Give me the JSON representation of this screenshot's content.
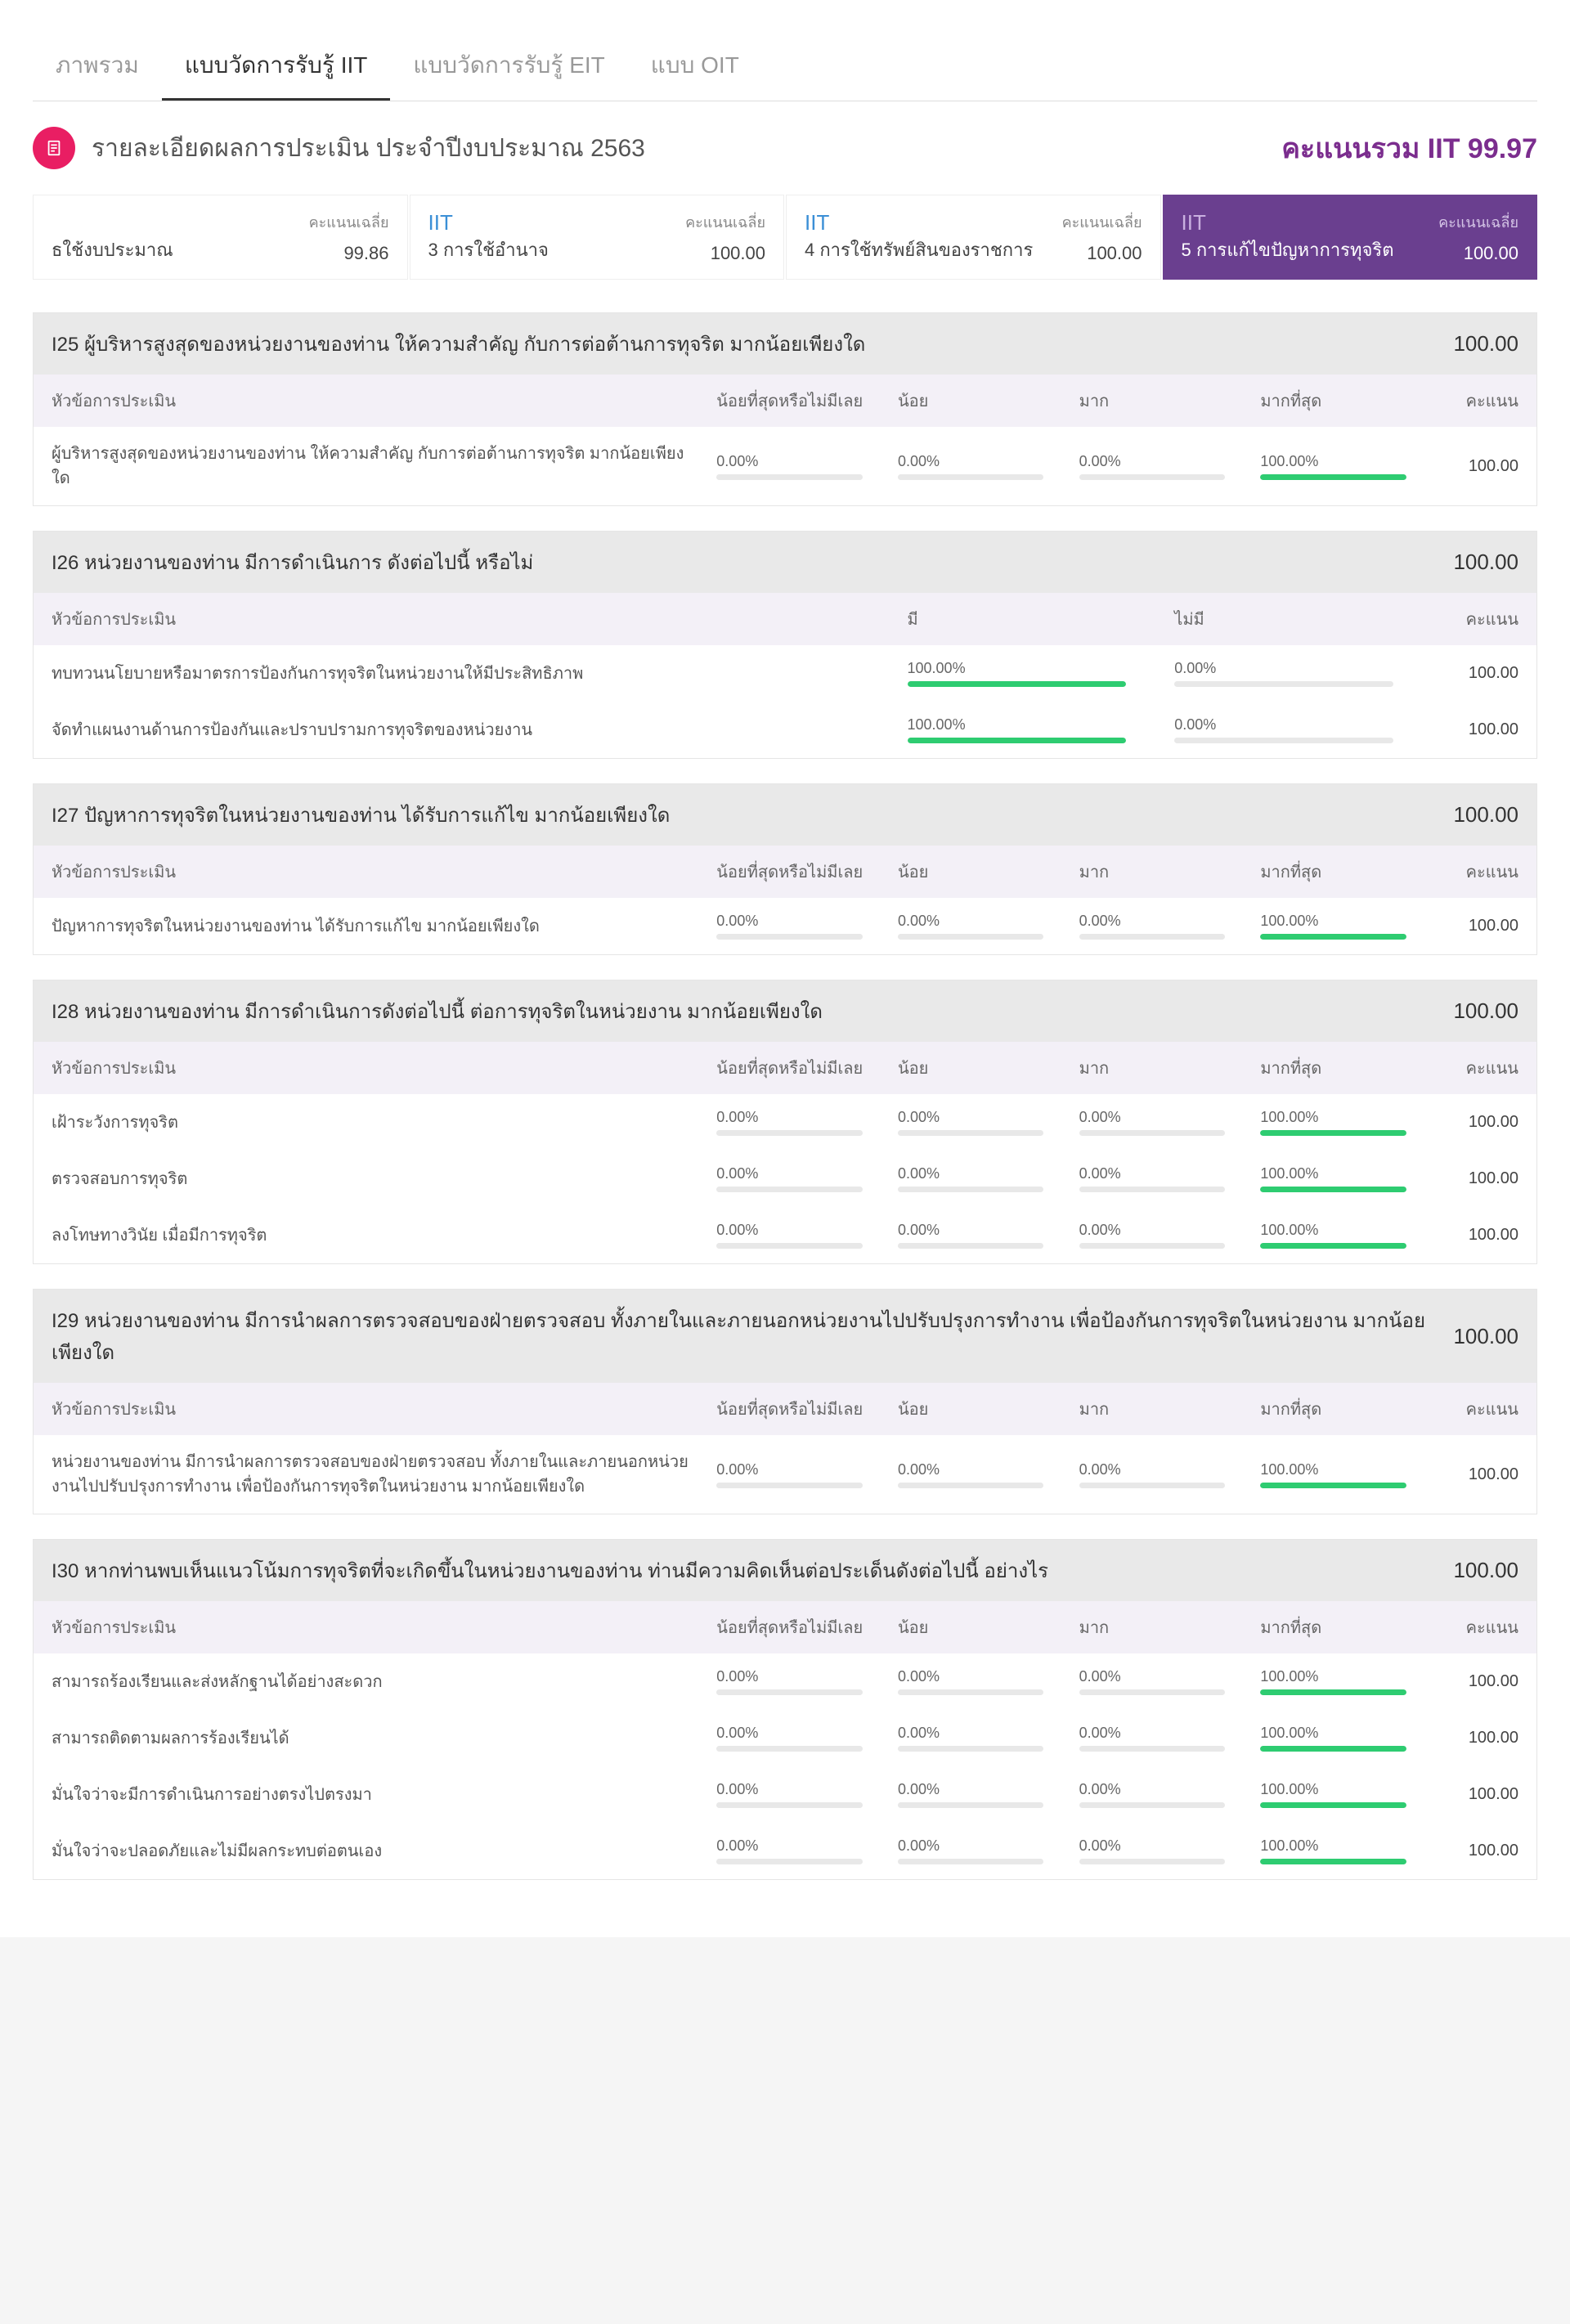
{
  "colors": {
    "accent_purple": "#6a3f8f",
    "accent_pink": "#e91e63",
    "link_blue": "#3b8fd6",
    "bar_fill": "#2ecc71",
    "bar_track": "#e8e8e8",
    "section_header_bg": "#e9e9e9",
    "table_header_bg": "#f3f0f7"
  },
  "tabs": [
    {
      "label": "ภาพรวม",
      "active": false
    },
    {
      "label": "แบบวัดการรับรู้ IIT",
      "active": true
    },
    {
      "label": "แบบวัดการรับรู้ EIT",
      "active": false
    },
    {
      "label": "แบบ OIT",
      "active": false
    }
  ],
  "header": {
    "title": "รายละเอียดผลการประเมิน ประจำปีงบประมาณ 2563",
    "total_label": "คะแนนรวม IIT 99.97",
    "icon": "document-icon"
  },
  "avg_label": "คะแนนเฉลี่ย",
  "cards": [
    {
      "title": "",
      "sub": "ธใช้งบประมาณ",
      "avg": "99.86",
      "active": false,
      "partial": true
    },
    {
      "title": "IIT",
      "sub": "3 การใช้อำนาจ",
      "avg": "100.00",
      "active": false
    },
    {
      "title": "IIT",
      "sub": "4 การใช้ทรัพย์สินของราชการ",
      "avg": "100.00",
      "active": false
    },
    {
      "title": "IIT",
      "sub": "5 การแก้ไขปัญหาการทุจริต",
      "avg": "100.00",
      "active": true
    }
  ],
  "col_labels": {
    "topic": "หัวข้อการประเมิน",
    "least": "น้อยที่สุดหรือไม่มีเลย",
    "low": "น้อย",
    "high": "มาก",
    "most": "มากที่สุด",
    "yes": "มี",
    "no": "ไม่มี",
    "score": "คะแนน"
  },
  "sections": [
    {
      "title": "I25 ผู้บริหารสูงสุดของหน่วยงานของท่าน ให้ความสำคัญ กับการต่อต้านการทุจริต มากน้อยเพียงใด",
      "score": "100.00",
      "cols": "four",
      "rows": [
        {
          "title": "ผู้บริหารสูงสุดของหน่วยงานของท่าน ให้ความสำคัญ กับการต่อต้านการทุจริต มากน้อยเพียงใด",
          "vals": [
            "0.00%",
            "0.00%",
            "0.00%",
            "100.00%"
          ],
          "fills": [
            0,
            0,
            0,
            100
          ],
          "score": "100.00"
        }
      ]
    },
    {
      "title": "I26 หน่วยงานของท่าน มีการดำเนินการ ดังต่อไปนี้ หรือไม่",
      "score": "100.00",
      "cols": "two",
      "rows": [
        {
          "title": "ทบทวนนโยบายหรือมาตรการป้องกันการทุจริตในหน่วยงานให้มีประสิทธิภาพ",
          "vals": [
            "100.00%",
            "0.00%"
          ],
          "fills": [
            100,
            0
          ],
          "score": "100.00"
        },
        {
          "title": "จัดทำแผนงานด้านการป้องกันและปราบปรามการทุจริตของหน่วยงาน",
          "vals": [
            "100.00%",
            "0.00%"
          ],
          "fills": [
            100,
            0
          ],
          "score": "100.00"
        }
      ]
    },
    {
      "title": "I27 ปัญหาการทุจริตในหน่วยงานของท่าน ได้รับการแก้ไข มากน้อยเพียงใด",
      "score": "100.00",
      "cols": "four",
      "rows": [
        {
          "title": "ปัญหาการทุจริตในหน่วยงานของท่าน ได้รับการแก้ไข มากน้อยเพียงใด",
          "vals": [
            "0.00%",
            "0.00%",
            "0.00%",
            "100.00%"
          ],
          "fills": [
            0,
            0,
            0,
            100
          ],
          "score": "100.00"
        }
      ]
    },
    {
      "title": "I28 หน่วยงานของท่าน มีการดำเนินการดังต่อไปนี้ ต่อการทุจริตในหน่วยงาน มากน้อยเพียงใด",
      "score": "100.00",
      "cols": "four",
      "rows": [
        {
          "title": "เฝ้าระวังการทุจริต",
          "vals": [
            "0.00%",
            "0.00%",
            "0.00%",
            "100.00%"
          ],
          "fills": [
            0,
            0,
            0,
            100
          ],
          "score": "100.00"
        },
        {
          "title": "ตรวจสอบการทุจริต",
          "vals": [
            "0.00%",
            "0.00%",
            "0.00%",
            "100.00%"
          ],
          "fills": [
            0,
            0,
            0,
            100
          ],
          "score": "100.00"
        },
        {
          "title": "ลงโทษทางวินัย เมื่อมีการทุจริต",
          "vals": [
            "0.00%",
            "0.00%",
            "0.00%",
            "100.00%"
          ],
          "fills": [
            0,
            0,
            0,
            100
          ],
          "score": "100.00"
        }
      ]
    },
    {
      "title": "I29 หน่วยงานของท่าน มีการนำผลการตรวจสอบของฝ่ายตรวจสอบ ทั้งภายในและภายนอกหน่วยงานไปปรับปรุงการทำงาน เพื่อป้องกันการทุจริตในหน่วยงาน มากน้อยเพียงใด",
      "score": "100.00",
      "cols": "four",
      "rows": [
        {
          "title": "หน่วยงานของท่าน มีการนำผลการตรวจสอบของฝ่ายตรวจสอบ ทั้งภายในและภายนอกหน่วยงานไปปรับปรุงการทำงาน เพื่อป้องกันการทุจริตในหน่วยงาน มากน้อยเพียงใด",
          "vals": [
            "0.00%",
            "0.00%",
            "0.00%",
            "100.00%"
          ],
          "fills": [
            0,
            0,
            0,
            100
          ],
          "score": "100.00"
        }
      ]
    },
    {
      "title": "I30 หากท่านพบเห็นแนวโน้มการทุจริตที่จะเกิดขึ้นในหน่วยงานของท่าน ท่านมีความคิดเห็นต่อประเด็นดังต่อไปนี้ อย่างไร",
      "score": "100.00",
      "cols": "four",
      "rows": [
        {
          "title": "สามารถร้องเรียนและส่งหลักฐานได้อย่างสะดวก",
          "vals": [
            "0.00%",
            "0.00%",
            "0.00%",
            "100.00%"
          ],
          "fills": [
            0,
            0,
            0,
            100
          ],
          "score": "100.00"
        },
        {
          "title": "สามารถติดตามผลการร้องเรียนได้",
          "vals": [
            "0.00%",
            "0.00%",
            "0.00%",
            "100.00%"
          ],
          "fills": [
            0,
            0,
            0,
            100
          ],
          "score": "100.00"
        },
        {
          "title": "มั่นใจว่าจะมีการดำเนินการอย่างตรงไปตรงมา",
          "vals": [
            "0.00%",
            "0.00%",
            "0.00%",
            "100.00%"
          ],
          "fills": [
            0,
            0,
            0,
            100
          ],
          "score": "100.00"
        },
        {
          "title": "มั่นใจว่าจะปลอดภัยและไม่มีผลกระทบต่อตนเอง",
          "vals": [
            "0.00%",
            "0.00%",
            "0.00%",
            "100.00%"
          ],
          "fills": [
            0,
            0,
            0,
            100
          ],
          "score": "100.00"
        }
      ]
    }
  ]
}
